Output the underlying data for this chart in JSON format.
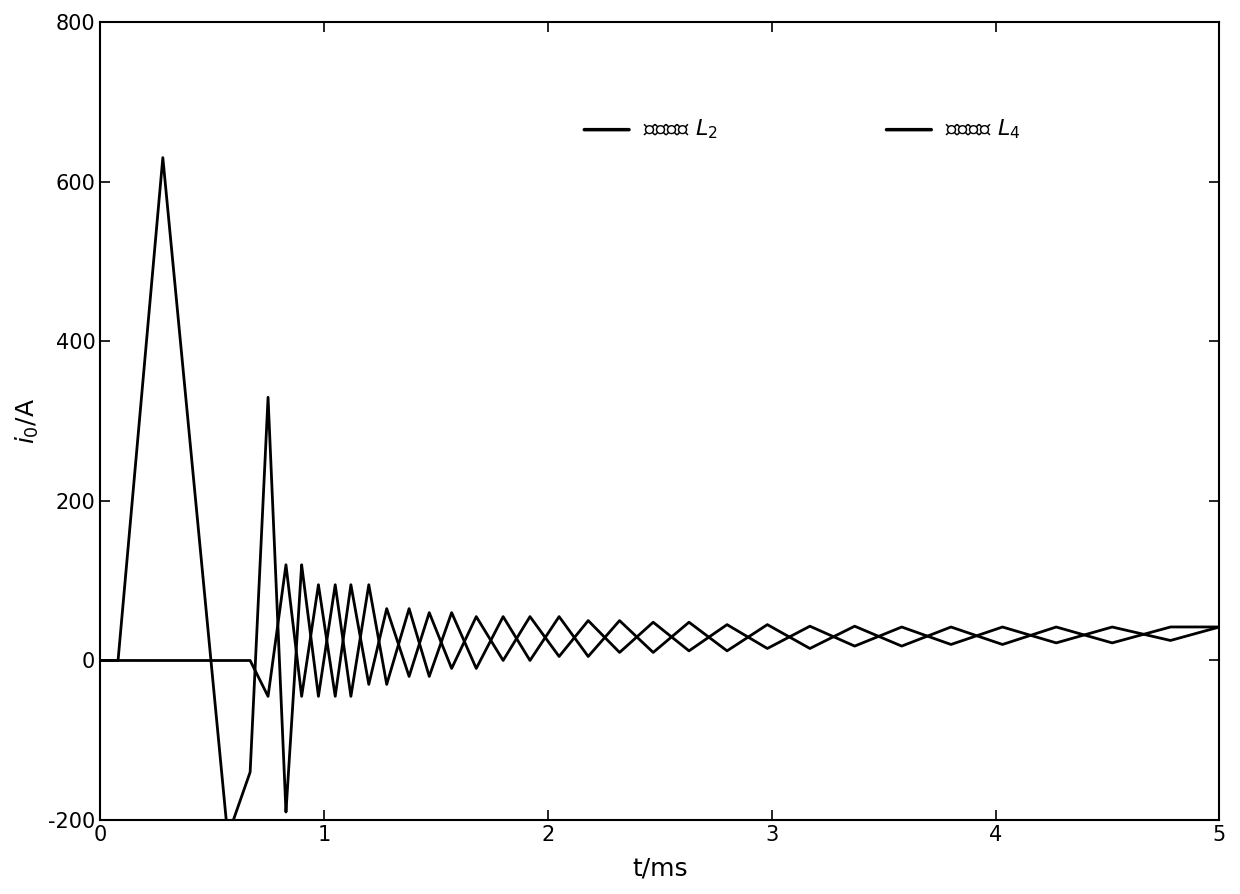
{
  "xlim": [
    0,
    5
  ],
  "ylim": [
    -200,
    800
  ],
  "xlabel": "t/ms",
  "ylabel": "$i_0$/A",
  "yticks": [
    -200,
    0,
    200,
    400,
    600,
    800
  ],
  "xticks": [
    0,
    1,
    2,
    3,
    4,
    5
  ],
  "legend_fault_label": "故障馈线 $L_2$",
  "legend_healthy_label": "健全馈线 $L_4$",
  "line_color": "#000000",
  "background_color": "#ffffff",
  "figsize": [
    12.4,
    8.94
  ],
  "dpi": 100,
  "linewidth": 2.0
}
